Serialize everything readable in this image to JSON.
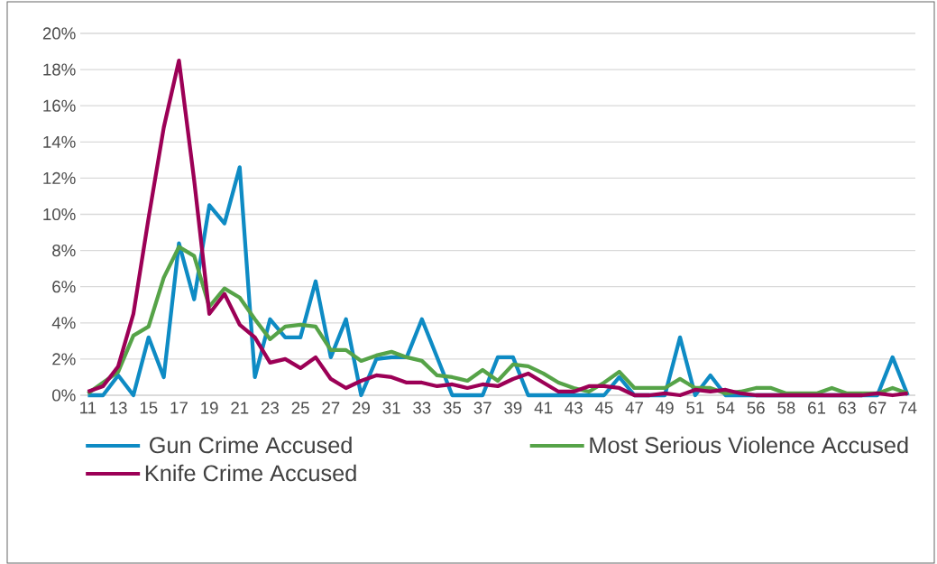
{
  "chart_data": {
    "type": "line",
    "categories": [
      "11",
      null,
      "13",
      null,
      "15",
      null,
      "17",
      null,
      "19",
      null,
      "21",
      null,
      "23",
      null,
      "25",
      null,
      "27",
      null,
      "29",
      null,
      "31",
      null,
      "33",
      null,
      "35",
      null,
      "37",
      null,
      "39",
      null,
      "41",
      null,
      "43",
      null,
      "45",
      null,
      "47",
      null,
      "49",
      null,
      "51",
      null,
      "54",
      null,
      "56",
      null,
      "58",
      null,
      "61",
      null,
      "63",
      null,
      "67",
      null,
      "74"
    ],
    "series": [
      {
        "name": "Gun Crime Accused",
        "color": "#0e8bc4",
        "values": [
          0,
          0,
          1.1,
          0,
          3.2,
          1.0,
          8.4,
          5.3,
          10.5,
          9.5,
          12.6,
          1.0,
          4.2,
          3.2,
          3.2,
          6.3,
          2.1,
          4.2,
          0,
          2.0,
          2.1,
          2.1,
          4.2,
          2.1,
          0,
          0,
          0,
          2.1,
          2.1,
          0,
          0,
          0,
          0,
          0,
          0,
          1.0,
          0,
          0,
          0,
          3.2,
          0,
          1.1,
          0,
          0,
          0,
          0,
          0,
          0,
          0,
          0,
          0,
          0,
          0,
          2.1,
          0
        ]
      },
      {
        "name": "Most Serious Violence Accused",
        "color": "#56a348",
        "values": [
          0.1,
          0.7,
          1.3,
          3.3,
          3.8,
          6.5,
          8.2,
          7.7,
          4.9,
          5.9,
          5.4,
          4.2,
          3.1,
          3.8,
          3.9,
          3.8,
          2.5,
          2.5,
          1.9,
          2.2,
          2.4,
          2.1,
          1.9,
          1.1,
          1.0,
          0.8,
          1.4,
          0.8,
          1.7,
          1.6,
          1.2,
          0.7,
          0.4,
          0.2,
          0.7,
          1.3,
          0.4,
          0.4,
          0.4,
          0.9,
          0.4,
          0.4,
          0.1,
          0.2,
          0.4,
          0.4,
          0.1,
          0.1,
          0.1,
          0.4,
          0.1,
          0.1,
          0.1,
          0.4,
          0.1
        ]
      },
      {
        "name": "Knife Crime Accused",
        "color": "#9c0056",
        "values": [
          0.2,
          0.5,
          1.6,
          4.5,
          9.8,
          14.8,
          18.5,
          11.9,
          4.5,
          5.6,
          3.9,
          3.2,
          1.8,
          2.0,
          1.5,
          2.1,
          0.9,
          0.4,
          0.8,
          1.1,
          1.0,
          0.7,
          0.7,
          0.5,
          0.6,
          0.4,
          0.6,
          0.5,
          0.9,
          1.2,
          0.7,
          0.2,
          0.2,
          0.5,
          0.5,
          0.4,
          0,
          0,
          0.1,
          0,
          0.3,
          0.2,
          0.3,
          0.1,
          0,
          0,
          0,
          0,
          0,
          0,
          0,
          0,
          0.1,
          0,
          0.1
        ]
      }
    ],
    "ylim": [
      0,
      20
    ],
    "yticks": [
      {
        "value": 0,
        "label": "0%"
      },
      {
        "value": 2,
        "label": "2%"
      },
      {
        "value": 4,
        "label": "4%"
      },
      {
        "value": 6,
        "label": "6%"
      },
      {
        "value": 8,
        "label": "8%"
      },
      {
        "value": 10,
        "label": "10%"
      },
      {
        "value": 12,
        "label": "12%"
      },
      {
        "value": 14,
        "label": "14%"
      },
      {
        "value": 16,
        "label": "16%"
      },
      {
        "value": 18,
        "label": "18%"
      },
      {
        "value": 20,
        "label": "20%"
      }
    ],
    "grid": "y",
    "legend": "bottom"
  }
}
